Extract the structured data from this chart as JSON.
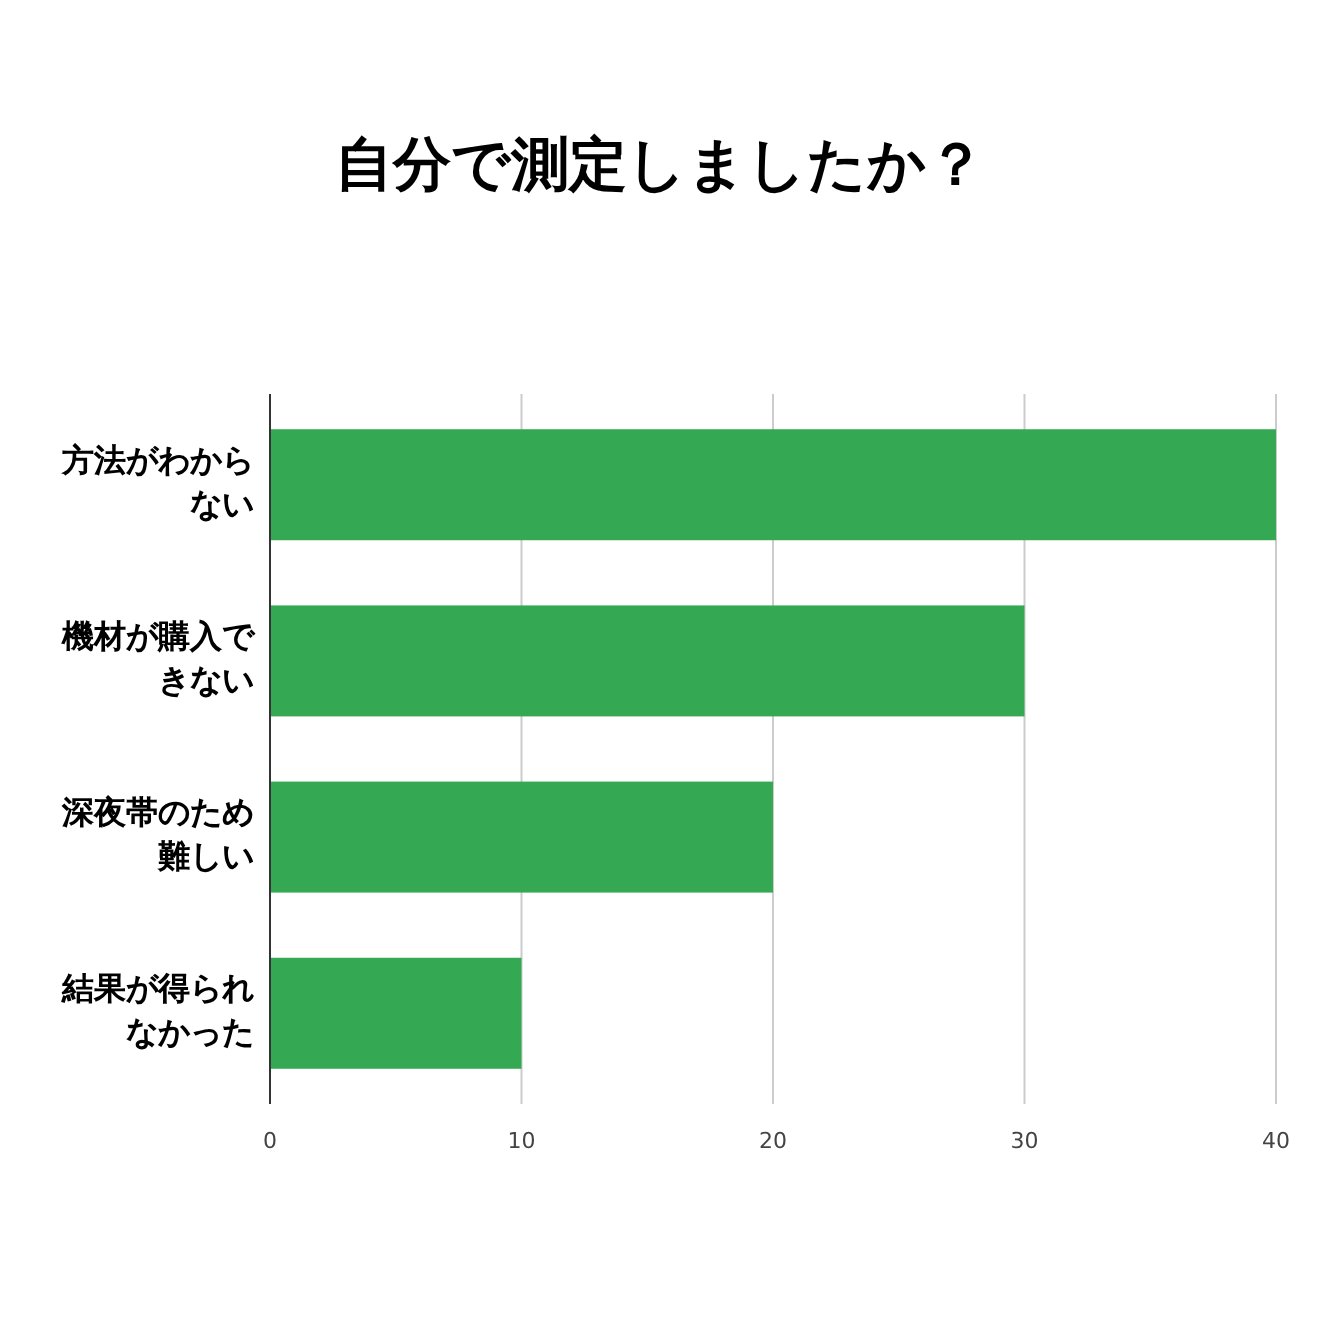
{
  "chart_data": {
    "type": "bar",
    "orientation": "horizontal",
    "title": "自分で測定しましたか？",
    "categories": [
      "方法がわからない",
      "機材が購入できない",
      "深夜帯のため難しい",
      "結果が得られなかった"
    ],
    "values": [
      40,
      30,
      20,
      10
    ],
    "color": "#34a853",
    "xlim": [
      0,
      40
    ],
    "xticks": [
      0,
      10,
      20,
      30,
      40
    ],
    "grid": "x"
  }
}
